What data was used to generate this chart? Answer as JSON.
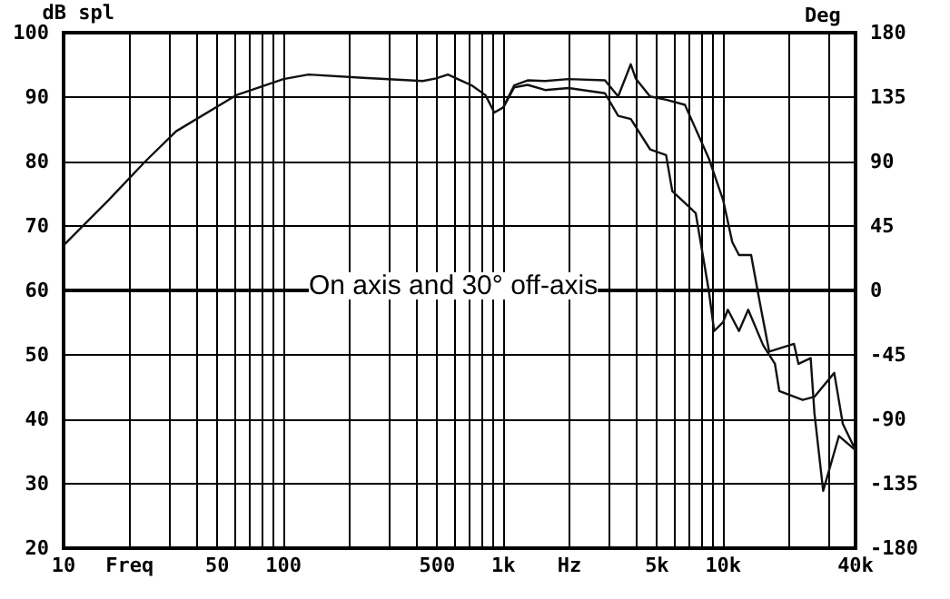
{
  "chart_data": {
    "type": "line",
    "ylabel": "dB spl",
    "y2label": "Deg",
    "annotations": [
      "On axis and 30° off-axis"
    ],
    "log": "x",
    "grid": true,
    "marker": "none",
    "line_style": "solid",
    "xlim": [
      10,
      40000
    ],
    "xticks": [
      10,
      {
        "value": 20,
        "label": "Freq"
      },
      {
        "value": 30,
        "label": null
      },
      {
        "value": 40,
        "label": null
      },
      50,
      {
        "value": 60,
        "label": null
      },
      {
        "value": 70,
        "label": null
      },
      {
        "value": 80,
        "label": null
      },
      {
        "value": 90,
        "label": null
      },
      100,
      {
        "value": 200,
        "label": null
      },
      {
        "value": 300,
        "label": null
      },
      {
        "value": 400,
        "label": null
      },
      500,
      {
        "value": 600,
        "label": null
      },
      {
        "value": 700,
        "label": null
      },
      {
        "value": 800,
        "label": null
      },
      {
        "value": 900,
        "label": null
      },
      {
        "value": 1000,
        "label": "1k"
      },
      {
        "value": 2000,
        "label": "Hz"
      },
      {
        "value": 3000,
        "label": null
      },
      {
        "value": 4000,
        "label": null
      },
      {
        "value": 5000,
        "label": "5k"
      },
      {
        "value": 6000,
        "label": null
      },
      {
        "value": 7000,
        "label": null
      },
      {
        "value": 8000,
        "label": null
      },
      {
        "value": 9000,
        "label": null
      },
      {
        "value": 10000,
        "label": "10k"
      },
      {
        "value": 20000,
        "label": null
      },
      {
        "value": 30000,
        "label": null
      },
      {
        "value": 40000,
        "label": "40k"
      }
    ],
    "ylim": [
      20,
      100
    ],
    "yticks": [
      20,
      30,
      40,
      50,
      60,
      70,
      80,
      90,
      100
    ],
    "y2lim": [
      -180,
      180
    ],
    "y2ticks": [
      -180,
      -135,
      -90,
      -45,
      0,
      45,
      90,
      135,
      180
    ],
    "series": [
      {
        "color": "#111111",
        "x": [
          10,
          16,
          23.5,
          32.5,
          61,
          100,
          130,
          230,
          430,
          495,
          560,
          720,
          830,
          910,
          1000,
          1120,
          1290,
          1550,
          1980,
          2900,
          3330,
          3800,
          4000,
          4650,
          5500,
          6700,
          8600,
          10000,
          11000,
          11800,
          13400,
          14700,
          16200,
          21000,
          22000,
          25000,
          26000,
          28500,
          33600,
          40000
        ],
        "values": [
          67,
          74,
          80,
          84.7,
          90.3,
          92.8,
          93.5,
          93,
          92.5,
          92.9,
          93.5,
          91.8,
          90.3,
          87.6,
          88.4,
          91.8,
          92.6,
          92.5,
          92.8,
          92.6,
          90.1,
          95.1,
          92.9,
          90.1,
          89.6,
          88.8,
          80.5,
          74,
          67.5,
          65.5,
          65.5,
          58,
          50.5,
          51.7,
          48.6,
          49.5,
          41,
          28.9,
          37.4,
          35.2
        ]
      },
      {
        "color": "#111111",
        "x": [
          1000,
          1120,
          1290,
          1550,
          1980,
          2900,
          3330,
          3800,
          4650,
          5500,
          5870,
          7500,
          8600,
          9100,
          10000,
          10500,
          11800,
          13000,
          15200,
          17200,
          18000,
          23000,
          26000,
          32000,
          35000,
          40000
        ],
        "values": [
          88.4,
          91.5,
          91.9,
          91.1,
          91.4,
          90.6,
          87.1,
          86.6,
          81.9,
          81,
          75.4,
          72,
          60,
          53.7,
          55.1,
          57,
          53.7,
          57,
          51.5,
          48.6,
          44.4,
          43,
          43.5,
          47.2,
          39.3,
          35.2
        ]
      }
    ]
  }
}
